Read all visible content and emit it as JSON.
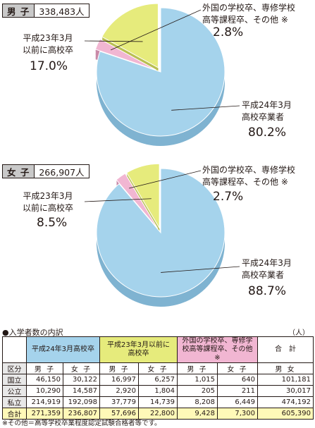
{
  "colors": {
    "blue": "#a5d3ec",
    "blue_side": "#7fb3d1",
    "yellow": "#e6eb7c",
    "yellow_side": "#b9bf52",
    "pink": "#f1b6d2",
    "pink_side": "#c98aa8",
    "total_row": "#fff9b8"
  },
  "groups": [
    {
      "label": "男 子",
      "count": "338,483人"
    },
    {
      "label": "女 子",
      "count": "266,907人"
    }
  ],
  "chart_data": [
    {
      "type": "pie",
      "title": "男 子 338,483人",
      "labels": [
        "平成24年3月高校卒業者",
        "平成23年3月以前に高校卒",
        "外国の学校卒、専修学校高等課程卒、その他 ※"
      ],
      "values": [
        80.2,
        17.0,
        2.8
      ]
    },
    {
      "type": "pie",
      "title": "女 子 266,907人",
      "labels": [
        "平成24年3月高校卒業者",
        "平成23年3月以前に高校卒",
        "外国の学校卒、専修学校高等課程卒、その他 ※"
      ],
      "values": [
        88.7,
        8.5,
        2.7
      ]
    }
  ],
  "pie_labels": {
    "male": {
      "other_l1": "外国の学校卒、専修学校",
      "other_l2": "高等課程卒、その他 ※",
      "other_pct": "2.8%",
      "prev_l1": "平成23年3月",
      "prev_l2": "以前に高校卒",
      "prev_pct": "17.0%",
      "grad_l1": "平成24年3月",
      "grad_l2": "高校卒業者",
      "grad_pct": "80.2%"
    },
    "female": {
      "other_l1": "外国の学校卒、専修学校",
      "other_l2": "高等課程卒、その他 ※",
      "other_pct": "2.7%",
      "prev_l1": "平成23年3月",
      "prev_l2": "以前に高校卒",
      "prev_pct": "8.5%",
      "grad_l1": "平成24年3月",
      "grad_l2": "高校卒業者",
      "grad_pct": "88.7%"
    }
  },
  "table": {
    "section_title": "●入学者数の内訳",
    "unit": "（人）",
    "group_headers": {
      "grad": "平成24年3月高校卒",
      "prev_l1": "平成23年3月以前に",
      "prev_l2": "高校卒",
      "other_l1": "外国の学校卒、専修学",
      "other_l2": "校高等課程卒、その他 ※",
      "total": "合　計"
    },
    "sub_headers": [
      "区分",
      "男 子",
      "女 子",
      "男 子",
      "女 子",
      "男 子",
      "女 子",
      "男 女"
    ],
    "rows": [
      [
        "国立",
        "46,150",
        "30,122",
        "16,997",
        "6,257",
        "1,015",
        "640",
        "101,181"
      ],
      [
        "公立",
        "10,290",
        "14,587",
        "2,920",
        "1,804",
        "205",
        "211",
        "30,017"
      ],
      [
        "私立",
        "214,919",
        "192,098",
        "37,779",
        "14,739",
        "8,208",
        "6,449",
        "474,192"
      ],
      [
        "合計",
        "271,359",
        "236,807",
        "57,696",
        "22,800",
        "9,428",
        "7,300",
        "605,390"
      ]
    ],
    "note": "※その他＝高等学校卒業程度認定試験合格者等です。"
  }
}
